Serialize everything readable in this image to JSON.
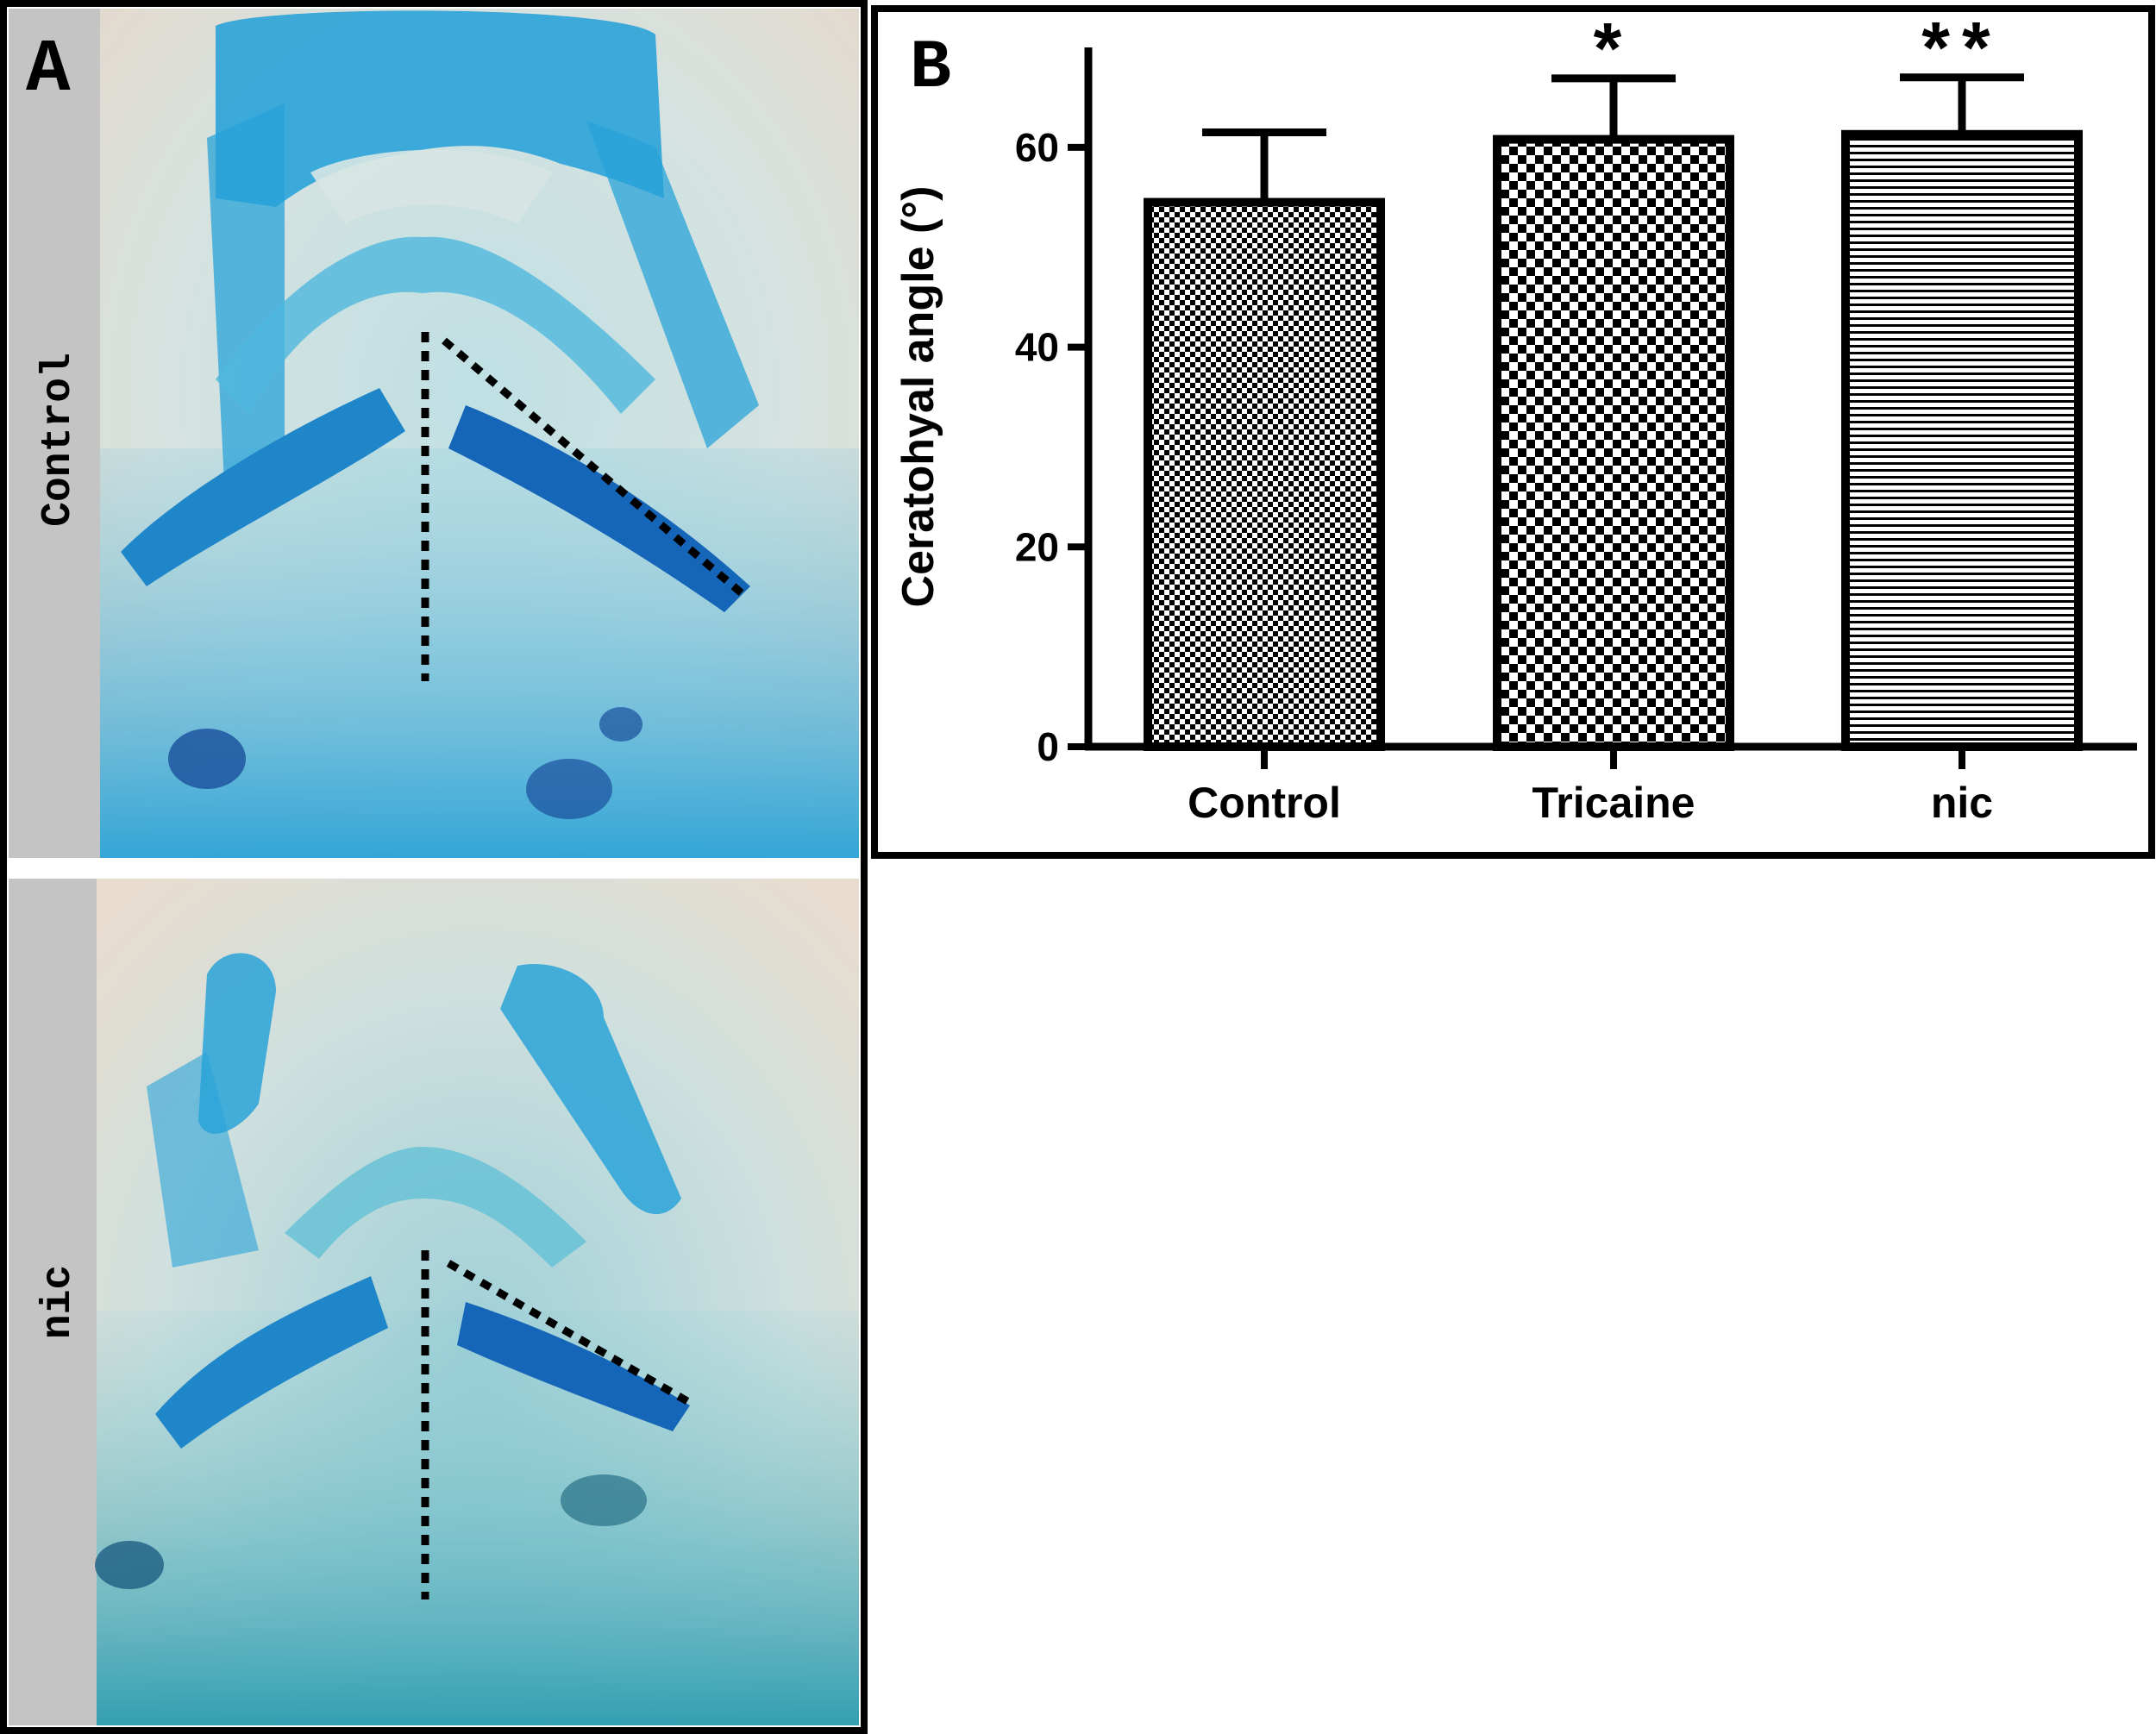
{
  "panel_a": {
    "label": "A",
    "top_image_label": "Control",
    "bottom_image_label": "nic"
  },
  "panel_b": {
    "label": "B"
  },
  "colors": {
    "stain_blue": "#2aa3d8",
    "dark_blue": "#1565b8",
    "tissue_cream": "#e6dccf",
    "sidebar_gray": "#c4c4c4",
    "border": "#000000"
  },
  "chart_data": {
    "type": "bar",
    "categories": [
      "Control",
      "Tricaine",
      "nic"
    ],
    "values": [
      54.5,
      60.8,
      61.3
    ],
    "error": [
      7.0,
      6.1,
      5.7
    ],
    "significance": [
      "",
      "*",
      "**"
    ],
    "patterns": [
      "dense-checker",
      "checker",
      "horizontal-lines"
    ],
    "ylabel": "Ceratohyal angle (°)",
    "yticks": [
      0,
      20,
      40,
      60
    ],
    "ylim": [
      0,
      70
    ]
  }
}
